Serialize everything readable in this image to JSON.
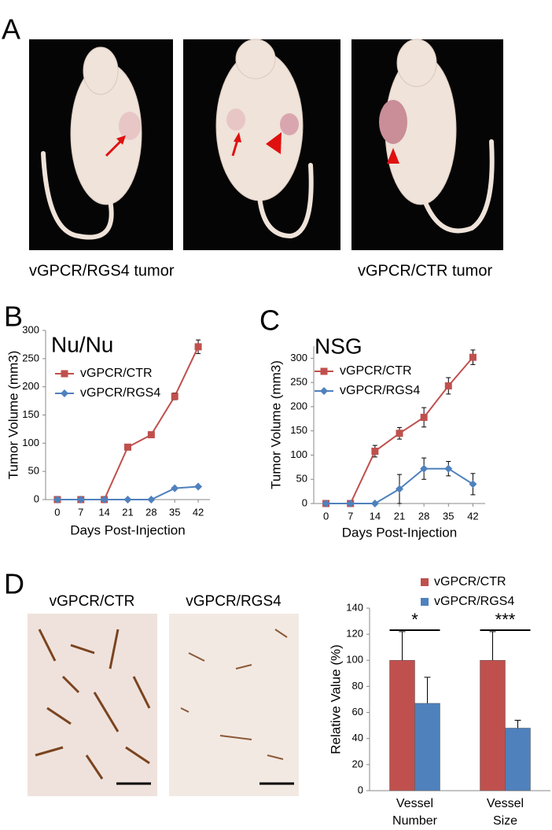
{
  "panel_labels": [
    "A",
    "B",
    "C",
    "D"
  ],
  "photo_captions": [
    "vGPCR/RGS4 tumor",
    "vGPCR/CTR tumor"
  ],
  "micrograph_labels": [
    "vGPCR/CTR",
    "vGPCR/RGS4"
  ],
  "chart_data": [
    {
      "type": "line",
      "title": "Nu/Nu",
      "x_label": "Days Post-Injection",
      "y_label": "Tumor Volume (mm3)",
      "x": [
        0,
        7,
        14,
        21,
        28,
        35,
        42
      ],
      "xlim": [
        -3.5,
        45.5
      ],
      "xticks": [
        0,
        7,
        14,
        21,
        28,
        35,
        42
      ],
      "ylim": [
        0,
        300
      ],
      "yticks": [
        0,
        50,
        100,
        150,
        200,
        250,
        300
      ],
      "legend": "upper left",
      "series": [
        {
          "name": "vGPCR/CTR",
          "color": "#c0504d",
          "marker": "square",
          "values": [
            0,
            0,
            0,
            93,
            115,
            183,
            271
          ],
          "errors": [
            0,
            0,
            0,
            4,
            2,
            6,
            12
          ]
        },
        {
          "name": "vGPCR/RGS4",
          "color": "#4f81bd",
          "marker": "diamond",
          "values": [
            0,
            0,
            0,
            0,
            0,
            20,
            23
          ]
        }
      ]
    },
    {
      "type": "line",
      "title": "NSG",
      "x_label": "Days Post-Injection",
      "y_label": "Tumor Volume (mm3)",
      "x": [
        0,
        7,
        14,
        21,
        28,
        35,
        42
      ],
      "xlim": [
        -3.5,
        45.5
      ],
      "xticks": [
        0,
        7,
        14,
        21,
        28,
        35,
        42
      ],
      "ylim": [
        0,
        325
      ],
      "yticks": [
        0,
        50,
        100,
        150,
        200,
        250,
        300
      ],
      "legend": "upper left",
      "series": [
        {
          "name": "vGPCR/CTR",
          "color": "#c0504d",
          "marker": "square",
          "values": [
            0,
            0,
            108,
            145,
            178,
            243,
            302
          ],
          "errors": [
            0,
            0,
            12,
            12,
            20,
            17,
            15
          ]
        },
        {
          "name": "vGPCR/RGS4",
          "color": "#4f81bd",
          "marker": "diamond",
          "values": [
            0,
            0,
            0,
            30,
            72,
            72,
            40
          ],
          "errors": [
            0,
            0,
            0,
            30,
            22,
            15,
            22
          ]
        }
      ]
    },
    {
      "type": "bar",
      "y_label": "Relative Value (%)",
      "categories": [
        "Vessel Number",
        "Vessel Size"
      ],
      "ylim": [
        0,
        140
      ],
      "yticks": [
        0,
        20,
        40,
        60,
        80,
        100,
        120,
        140
      ],
      "legend": "above",
      "annotations": [
        "*",
        "***"
      ],
      "series": [
        {
          "name": "vGPCR/CTR",
          "color": "#c0504d",
          "values": [
            100,
            100
          ],
          "errors": [
            22,
            22
          ]
        },
        {
          "name": "vGPCR/RGS4",
          "color": "#4f81bd",
          "values": [
            67,
            48
          ],
          "errors": [
            20,
            6
          ]
        }
      ]
    }
  ]
}
